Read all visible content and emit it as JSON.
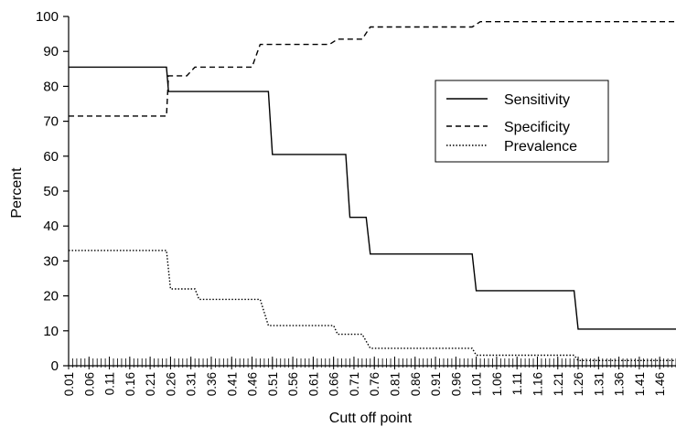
{
  "chart_data": {
    "type": "line",
    "xlabel": "Cutt off point",
    "ylabel": "Percent",
    "ylim": [
      0,
      100
    ],
    "yticks": [
      "0",
      "10",
      "20",
      "30",
      "40",
      "50",
      "60",
      "70",
      "80",
      "90",
      "100"
    ],
    "xticks": [
      "0.01",
      "0.06",
      "0.11",
      "0.16",
      "0.21",
      "0.26",
      "0.31",
      "0.36",
      "0.41",
      "0.46",
      "0.51",
      "0.56",
      "0.61",
      "0.66",
      "0.71",
      "0.76",
      "0.81",
      "0.86",
      "0.91",
      "0.96",
      "1.01",
      "1.06",
      "1.11",
      "1.16",
      "1.21",
      "1.26",
      "1.31",
      "1.36",
      "1.41",
      "1.46"
    ],
    "xlim": [
      0.01,
      1.5
    ],
    "legend_position": "right",
    "series": [
      {
        "name": "Sensitivity",
        "style": "solid",
        "x": [
          0.01,
          0.25,
          0.255,
          0.5,
          0.51,
          0.69,
          0.7,
          0.74,
          0.75,
          1.0,
          1.01,
          1.25,
          1.26,
          1.5
        ],
        "y": [
          85.5,
          85.5,
          78.5,
          78.5,
          60.5,
          60.5,
          42.5,
          42.5,
          32,
          32,
          21.5,
          21.5,
          10.5,
          10.5
        ]
      },
      {
        "name": "Specificity",
        "style": "dashed",
        "x": [
          0.01,
          0.25,
          0.255,
          0.3,
          0.32,
          0.46,
          0.48,
          0.65,
          0.67,
          0.73,
          0.75,
          1.0,
          1.02,
          1.5
        ],
        "y": [
          71.5,
          71.5,
          83,
          83,
          85.5,
          85.5,
          92,
          92,
          93.5,
          93.5,
          97,
          97,
          98.5,
          98.5
        ]
      },
      {
        "name": "Prevalence",
        "style": "dotted",
        "x": [
          0.01,
          0.25,
          0.26,
          0.32,
          0.33,
          0.48,
          0.5,
          0.66,
          0.67,
          0.73,
          0.75,
          1.0,
          1.01,
          1.25,
          1.26,
          1.5
        ],
        "y": [
          33,
          33,
          22,
          22,
          19,
          19,
          11.5,
          11.5,
          9,
          9,
          5,
          5,
          3,
          3,
          1.5,
          1.5
        ]
      }
    ]
  }
}
